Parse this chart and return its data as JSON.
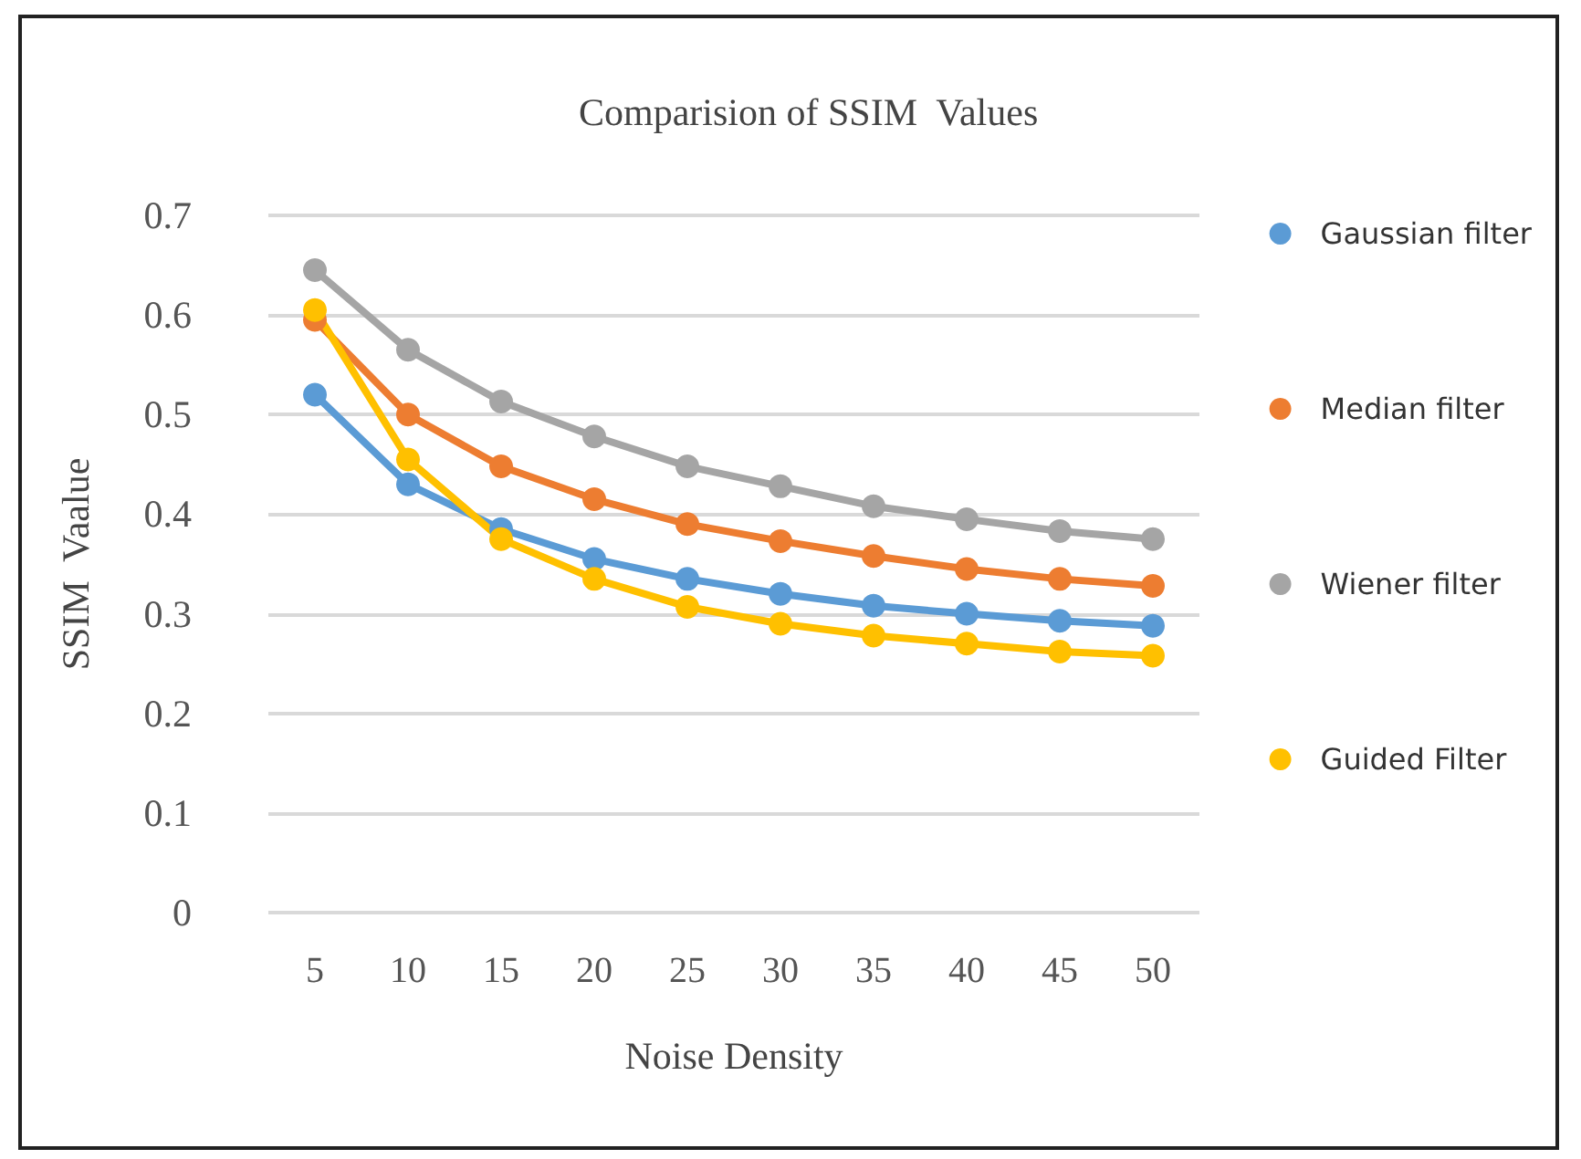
{
  "chart_data": {
    "type": "line",
    "title": "Comparision of SSIM  Values",
    "xlabel": "Noise Density",
    "ylabel": "SSIM  Vaalue",
    "categories": [
      "5",
      "10",
      "15",
      "20",
      "25",
      "30",
      "35",
      "40",
      "45",
      "50"
    ],
    "series": [
      {
        "name": "Gaussian filter",
        "color": "#5b9bd5",
        "values": [
          0.52,
          0.43,
          0.385,
          0.355,
          0.335,
          0.32,
          0.308,
          0.3,
          0.293,
          0.288
        ]
      },
      {
        "name": "Median filter",
        "color": "#ed7d31",
        "values": [
          0.595,
          0.5,
          0.448,
          0.415,
          0.39,
          0.373,
          0.358,
          0.345,
          0.335,
          0.328
        ]
      },
      {
        "name": "Wiener filter",
        "color": "#a5a5a5",
        "values": [
          0.645,
          0.565,
          0.513,
          0.478,
          0.448,
          0.428,
          0.408,
          0.395,
          0.383,
          0.375
        ]
      },
      {
        "name": "Guided Filter",
        "color": "#ffc000",
        "values": [
          0.605,
          0.455,
          0.375,
          0.335,
          0.307,
          0.29,
          0.278,
          0.27,
          0.262,
          0.258
        ]
      }
    ],
    "ylim": [
      0,
      0.7
    ],
    "yticks": [
      0,
      0.1,
      0.2,
      0.3,
      0.4,
      0.5,
      0.6,
      0.7
    ],
    "grid": "y",
    "legend": "right",
    "marker": "circle",
    "line_style": "solid"
  }
}
